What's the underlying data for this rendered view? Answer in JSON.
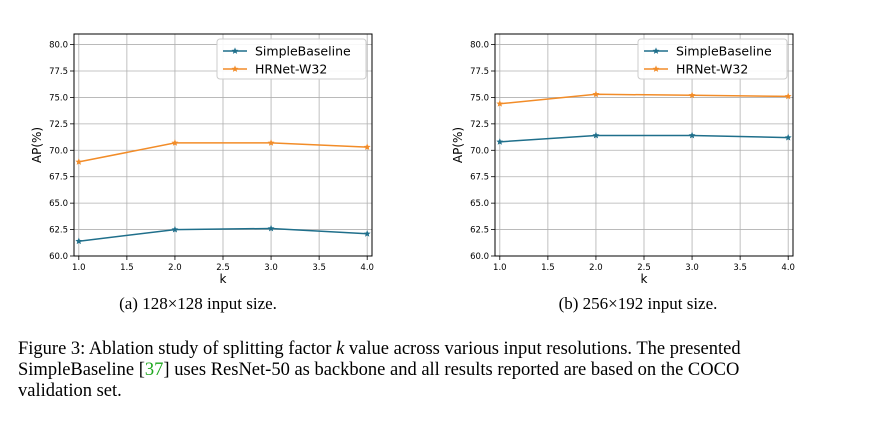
{
  "chart_data": [
    {
      "type": "line",
      "title": "",
      "xlabel": "k",
      "ylabel": "AP(%)",
      "x": [
        1.0,
        2.0,
        3.0,
        4.0
      ],
      "xlim": [
        0.95,
        4.05
      ],
      "ylim": [
        60.0,
        81.0
      ],
      "xticks": [
        "1.0",
        "1.5",
        "2.0",
        "2.5",
        "3.0",
        "3.5",
        "4.0"
      ],
      "yticks": [
        "60.0",
        "62.5",
        "65.0",
        "67.5",
        "70.0",
        "72.5",
        "75.0",
        "77.5",
        "80.0"
      ],
      "grid": true,
      "legend_position": "top-right",
      "series": [
        {
          "name": "SimpleBaseline",
          "color": "#1f6f8b",
          "values": [
            61.4,
            62.5,
            62.6,
            62.1
          ]
        },
        {
          "name": "HRNet-W32",
          "color": "#f28c28",
          "values": [
            68.9,
            70.7,
            70.7,
            70.3
          ]
        }
      ]
    },
    {
      "type": "line",
      "title": "",
      "xlabel": "k",
      "ylabel": "AP(%)",
      "x": [
        1.0,
        2.0,
        3.0,
        4.0
      ],
      "xlim": [
        0.95,
        4.05
      ],
      "ylim": [
        60.0,
        81.0
      ],
      "xticks": [
        "1.0",
        "1.5",
        "2.0",
        "2.5",
        "3.0",
        "3.5",
        "4.0"
      ],
      "yticks": [
        "60.0",
        "62.5",
        "65.0",
        "67.5",
        "70.0",
        "72.5",
        "75.0",
        "77.5",
        "80.0"
      ],
      "grid": true,
      "legend_position": "top-right",
      "series": [
        {
          "name": "SimpleBaseline",
          "color": "#1f6f8b",
          "values": [
            70.8,
            71.4,
            71.4,
            71.2
          ]
        },
        {
          "name": "HRNet-W32",
          "color": "#f28c28",
          "values": [
            74.4,
            75.3,
            75.2,
            75.1
          ]
        }
      ]
    }
  ],
  "subcaptions": {
    "a": "(a)  128×128 input size.",
    "b": "(b)  256×192 input size."
  },
  "caption": {
    "line1_pre": "Figure 3: Ablation study of splitting factor ",
    "k": "k",
    "line1_post": " value across various input resolutions. The presented",
    "line2_pre": "SimpleBaseline [",
    "ref": "37",
    "line2_post": "] uses ResNet-50 as backbone and all results reported are based on the COCO",
    "line3": "validation set."
  }
}
